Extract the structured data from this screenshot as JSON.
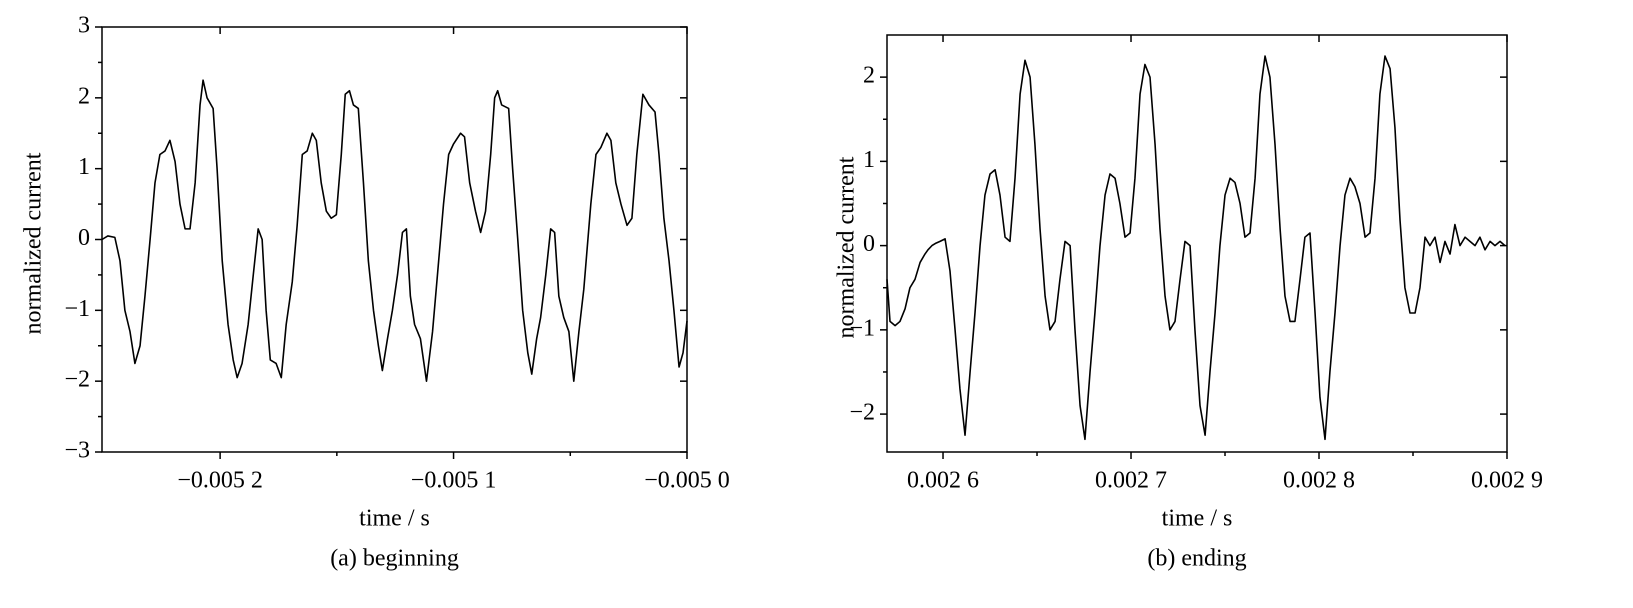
{
  "chart_data": [
    {
      "type": "line",
      "xlabel": "time / s",
      "ylabel": "normalized current",
      "caption": "(a) beginning",
      "color": "#000000",
      "xlim": [
        -0.0052506,
        -0.005
      ],
      "ylim": [
        -3,
        3
      ],
      "xticks": [
        {
          "value": -0.0052,
          "label": "−0.005 2"
        },
        {
          "value": -0.0051,
          "label": "−0.005 1"
        },
        {
          "value": -0.005,
          "label": "−0.005 0"
        }
      ],
      "yticks": [
        {
          "value": -3,
          "label": "−3"
        },
        {
          "value": -2,
          "label": "−2"
        },
        {
          "value": -1,
          "label": "−1"
        },
        0,
        1,
        2,
        3
      ],
      "x": [
        -0.0052506,
        -0.0052481,
        -0.0052451,
        -0.0052429,
        -0.0052408,
        -0.0052386,
        -0.0052365,
        -0.0052343,
        -0.0052322,
        -0.00523,
        -0.0052279,
        -0.0052258,
        -0.0052236,
        -0.0052215,
        -0.0052193,
        -0.0052172,
        -0.005215,
        -0.0052129,
        -0.0052107,
        -0.0052086,
        -0.0052073,
        -0.0052056,
        -0.005203,
        -0.0052013,
        -0.0051991,
        -0.0051966,
        -0.0051944,
        -0.0051927,
        -0.0051906,
        -0.005188,
        -0.0051858,
        -0.0051837,
        -0.005182,
        -0.0051803,
        -0.0051785,
        -0.005176,
        -0.0051738,
        -0.0051717,
        -0.0051691,
        -0.005167,
        -0.0051648,
        -0.0051627,
        -0.0051605,
        -0.0051588,
        -0.0051567,
        -0.0051545,
        -0.0051524,
        -0.0051502,
        -0.0051481,
        -0.0051464,
        -0.0051446,
        -0.0051429,
        -0.0051408,
        -0.0051386,
        -0.0051365,
        -0.0051343,
        -0.0051322,
        -0.0051305,
        -0.0051283,
        -0.0051262,
        -0.005124,
        -0.0051219,
        -0.0051202,
        -0.0051185,
        -0.0051167,
        -0.0051142,
        -0.0051116,
        -0.005109,
        -0.0051069,
        -0.0051043,
        -0.0051021,
        -0.0051,
        -0.005097,
        -0.0050953,
        -0.0050931,
        -0.0050906,
        -0.0050884,
        -0.0050863,
        -0.0050841,
        -0.0050824,
        -0.0050811,
        -0.0050794,
        -0.0050764,
        -0.0050747,
        -0.0050725,
        -0.0050704,
        -0.0050682,
        -0.0050665,
        -0.0050644,
        -0.0050627,
        -0.0050605,
        -0.0050584,
        -0.0050567,
        -0.0050549,
        -0.0050528,
        -0.0050506,
        -0.0050485,
        -0.0050463,
        -0.0050442,
        -0.0050412,
        -0.005039,
        -0.0050369,
        -0.0050343,
        -0.0050326,
        -0.0050305,
        -0.0050283,
        -0.0050257,
        -0.0050236,
        -0.0050215,
        -0.0050189,
        -0.0050163,
        -0.0050137,
        -0.005012,
        -0.0050099,
        -0.0050077,
        -0.0050056,
        -0.0050034,
        -0.0050017,
        -0.005
      ],
      "values": [
        0,
        0.05,
        0.03,
        -0.3,
        -1.0,
        -1.3,
        -1.75,
        -1.5,
        -0.8,
        0,
        0.8,
        1.2,
        1.25,
        1.4,
        1.1,
        0.5,
        0.15,
        0.15,
        0.8,
        1.9,
        2.25,
        2.0,
        1.85,
        1.0,
        -0.3,
        -1.2,
        -1.7,
        -1.95,
        -1.75,
        -1.2,
        -0.5,
        0.15,
        0.0,
        -1.0,
        -1.7,
        -1.75,
        -1.95,
        -1.2,
        -0.6,
        0.2,
        1.2,
        1.25,
        1.5,
        1.4,
        0.8,
        0.4,
        0.3,
        0.35,
        1.2,
        2.05,
        2.1,
        1.9,
        1.85,
        0.8,
        -0.3,
        -1.0,
        -1.5,
        -1.85,
        -1.4,
        -1.0,
        -0.5,
        0.1,
        0.15,
        -0.8,
        -1.2,
        -1.4,
        -2.0,
        -1.3,
        -0.5,
        0.5,
        1.2,
        1.35,
        1.5,
        1.45,
        0.8,
        0.4,
        0.1,
        0.4,
        1.2,
        2.0,
        2.1,
        1.9,
        1.85,
        1.0,
        0,
        -1.0,
        -1.6,
        -1.9,
        -1.4,
        -1.1,
        -0.5,
        0.15,
        0.1,
        -0.8,
        -1.1,
        -1.3,
        -2.0,
        -1.3,
        -0.7,
        0.5,
        1.2,
        1.3,
        1.5,
        1.4,
        0.8,
        0.5,
        0.2,
        0.3,
        1.2,
        2.05,
        1.9,
        1.8,
        1.2,
        0.3,
        -0.3,
        -1.0,
        -1.8,
        -1.6,
        -1.15
      ]
    },
    {
      "type": "line",
      "xlabel": "time / s",
      "ylabel": "normalized current",
      "caption": "(b) ending",
      "color": "#000000",
      "xlim": [
        0.0025702,
        0.0029
      ],
      "ylim": [
        -2.45,
        2.5
      ],
      "xticks": [
        {
          "value": 0.0026,
          "label": "0.002 6"
        },
        {
          "value": 0.0027,
          "label": "0.002 7"
        },
        {
          "value": 0.0028,
          "label": "0.002 8"
        },
        {
          "value": 0.0029,
          "label": "0.002 9"
        }
      ],
      "yticks": [
        {
          "value": -2,
          "label": "−2"
        },
        {
          "value": -1,
          "label": "−1"
        },
        0,
        1,
        2
      ],
      "x": [
        0.0025702,
        0.0025718,
        0.0025745,
        0.0025771,
        0.0025798,
        0.0025824,
        0.0025851,
        0.0025878,
        0.0025904,
        0.002592,
        0.0025941,
        0.0025963,
        0.0025984,
        0.0026011,
        0.0026037,
        0.0026064,
        0.002609,
        0.0026117,
        0.0026144,
        0.002617,
        0.0026197,
        0.0026223,
        0.002625,
        0.0026277,
        0.0026303,
        0.002633,
        0.0026356,
        0.0026383,
        0.002641,
        0.0026436,
        0.0026463,
        0.0026489,
        0.0026516,
        0.0026543,
        0.0026569,
        0.0026596,
        0.0026622,
        0.0026649,
        0.0026676,
        0.0026702,
        0.0026729,
        0.0026755,
        0.0026782,
        0.0026808,
        0.0026835,
        0.0026862,
        0.0026888,
        0.0026915,
        0.0026941,
        0.0026968,
        0.0026995,
        0.0027021,
        0.0027048,
        0.0027074,
        0.0027101,
        0.0027128,
        0.0027154,
        0.0027181,
        0.0027207,
        0.0027234,
        0.0027261,
        0.0027287,
        0.0027314,
        0.002734,
        0.0027367,
        0.0027394,
        0.002742,
        0.0027447,
        0.0027473,
        0.00275,
        0.0027527,
        0.0027553,
        0.002758,
        0.0027606,
        0.0027633,
        0.002766,
        0.0027686,
        0.0027713,
        0.0027739,
        0.0027766,
        0.0027793,
        0.0027819,
        0.0027846,
        0.0027872,
        0.0027899,
        0.0027925,
        0.0027952,
        0.0027979,
        0.0028005,
        0.0028032,
        0.0028058,
        0.0028085,
        0.0028112,
        0.0028138,
        0.0028165,
        0.0028191,
        0.0028218,
        0.0028245,
        0.0028271,
        0.0028298,
        0.0028324,
        0.0028351,
        0.0028378,
        0.0028404,
        0.0028431,
        0.0028457,
        0.0028484,
        0.0028511,
        0.0028537,
        0.0028564,
        0.002859,
        0.0028617,
        0.0028644,
        0.002867,
        0.0028697,
        0.0028723,
        0.002875,
        0.0028777,
        0.0028803,
        0.002883,
        0.0028856,
        0.0028883,
        0.002891,
        0.0028936,
        0.0028963,
        0.0028989
      ],
      "values": [
        -0.4,
        -0.9,
        -0.95,
        -0.9,
        -0.75,
        -0.5,
        -0.4,
        -0.2,
        -0.1,
        -0.05,
        0.0,
        0.03,
        0.05,
        0.08,
        -0.3,
        -1.0,
        -1.7,
        -2.25,
        -1.5,
        -0.8,
        0.0,
        0.6,
        0.85,
        0.9,
        0.6,
        0.1,
        0.05,
        0.8,
        1.8,
        2.2,
        2.0,
        1.2,
        0.2,
        -0.6,
        -1.0,
        -0.9,
        -0.4,
        0.05,
        0.0,
        -1.0,
        -1.9,
        -2.3,
        -1.5,
        -0.8,
        0.0,
        0.6,
        0.85,
        0.8,
        0.5,
        0.1,
        0.15,
        0.8,
        1.8,
        2.15,
        2.0,
        1.2,
        0.2,
        -0.6,
        -1.0,
        -0.9,
        -0.4,
        0.05,
        0.0,
        -1.0,
        -1.9,
        -2.25,
        -1.5,
        -0.8,
        0.0,
        0.6,
        0.8,
        0.75,
        0.5,
        0.1,
        0.15,
        0.8,
        1.8,
        2.25,
        2.0,
        1.2,
        0.2,
        -0.6,
        -0.9,
        -0.9,
        -0.4,
        0.1,
        0.15,
        -0.8,
        -1.8,
        -2.3,
        -1.5,
        -0.8,
        0.0,
        0.6,
        0.8,
        0.7,
        0.5,
        0.1,
        0.15,
        0.8,
        1.8,
        2.25,
        2.1,
        1.4,
        0.3,
        -0.5,
        -0.8,
        -0.8,
        -0.5,
        0.1,
        0.0,
        0.1,
        -0.2,
        0.05,
        -0.1,
        0.25,
        0.0,
        0.1,
        0.05,
        0.0,
        0.1,
        -0.05,
        0.05,
        0.0,
        0.05,
        0.0
      ]
    }
  ]
}
